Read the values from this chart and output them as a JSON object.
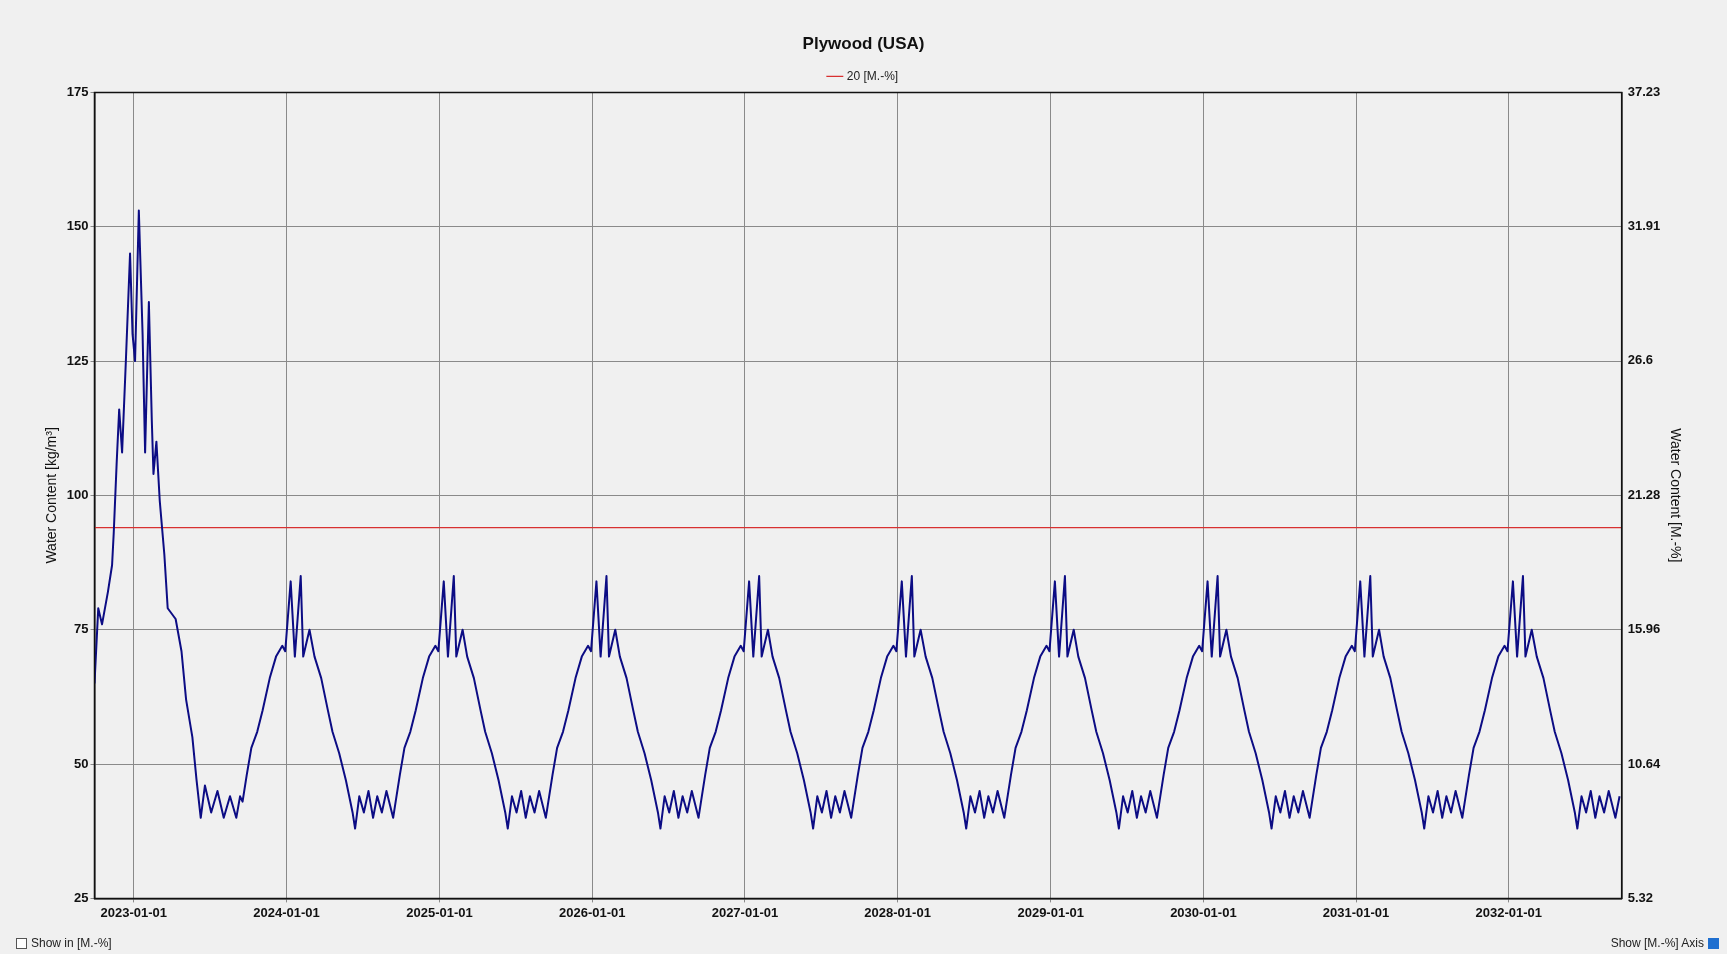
{
  "chart_data": {
    "type": "line",
    "title": "Plywood (USA)",
    "ylabel": "Water Content [kg/m³]",
    "y2label": "Water Content [M.-%]",
    "xlim": [
      "2022-09-29",
      "2032-09-27"
    ],
    "xticks": [
      "2023-01-01",
      "2024-01-01",
      "2025-01-01",
      "2026-01-01",
      "2027-01-01",
      "2028-01-01",
      "2029-01-01",
      "2030-01-01",
      "2031-01-01",
      "2032-01-01"
    ],
    "ylim": [
      25,
      175
    ],
    "yticks": [
      25,
      50,
      75,
      100,
      125,
      150,
      175
    ],
    "y2lim": [
      5.32,
      37.23
    ],
    "y2ticks": [
      5.32,
      10.64,
      15.96,
      21.28,
      26.6,
      31.91,
      37.23
    ],
    "grid": true,
    "legend": "top",
    "marker": "none",
    "line_style": "solid",
    "ref_lines": [
      {
        "axis": "y2",
        "value": 20,
        "label": "20 [M.-%]",
        "color": "#d83030"
      }
    ],
    "annotations": [
      "Show in [M.-%]",
      "Show [M.-%] Axis"
    ],
    "series": [
      {
        "color": "#0c0c84",
        "x": [
          "2022-09-29",
          "2022-10-08",
          "2022-10-17",
          "2022-10-31",
          "2022-11-10",
          "2022-11-14",
          "2022-11-21",
          "2022-11-27",
          "2022-12-04",
          "2022-12-13",
          "2022-12-23",
          "2022-12-29",
          "2023-01-04",
          "2023-01-13",
          "2023-01-22",
          "2023-01-28",
          "2023-02-06",
          "2023-02-13",
          "2023-02-17",
          "2023-02-24",
          "2023-03-04",
          "2023-03-15",
          "2023-03-23",
          "2023-04-11",
          "2023-04-25",
          "2023-05-06",
          "2023-05-21",
          "2023-05-31",
          "2023-06-10",
          "2023-06-20",
          "2023-07-05",
          "2023-07-20",
          "2023-08-04",
          "2023-08-19",
          "2023-09-03",
          "2023-09-12",
          "2023-09-18",
          "2023-09-28",
          "2023-10-09",
          "2023-10-23",
          "2023-11-05",
          "2023-11-22",
          "2023-12-07",
          "2023-12-22",
          "2023-12-29",
          "2024-01-11",
          "2024-01-21",
          "2024-02-04",
          "2024-02-10",
          "2024-02-25",
          "2024-03-08",
          "2024-03-24",
          "2024-04-09",
          "2024-04-20",
          "2024-05-06",
          "2024-05-22",
          "2024-06-07",
          "2024-06-13",
          "2024-06-23",
          "2024-07-04",
          "2024-07-15",
          "2024-07-26",
          "2024-08-05",
          "2024-08-16",
          "2024-08-27",
          "2024-09-12",
          "2024-09-18",
          "2024-09-28",
          "2024-10-09",
          "2024-10-23",
          "2024-11-05",
          "2024-11-22",
          "2024-12-07",
          "2024-12-22",
          "2024-12-29",
          "2025-01-11",
          "2025-01-21",
          "2025-02-04",
          "2025-02-10",
          "2025-02-25",
          "2025-03-08",
          "2025-03-24",
          "2025-04-09",
          "2025-04-20",
          "2025-05-06",
          "2025-05-22",
          "2025-06-07",
          "2025-06-13",
          "2025-06-23",
          "2025-07-04",
          "2025-07-15",
          "2025-07-26",
          "2025-08-05",
          "2025-08-16",
          "2025-08-27",
          "2025-09-12",
          "2025-09-18",
          "2025-09-28",
          "2025-10-09",
          "2025-10-23",
          "2025-11-05",
          "2025-11-22",
          "2025-12-07",
          "2025-12-22",
          "2025-12-29",
          "2026-01-11",
          "2026-01-21",
          "2026-02-04",
          "2026-02-10",
          "2026-02-25",
          "2026-03-08",
          "2026-03-24",
          "2026-04-09",
          "2026-04-20",
          "2026-05-06",
          "2026-05-22",
          "2026-06-07",
          "2026-06-13",
          "2026-06-23",
          "2026-07-04",
          "2026-07-15",
          "2026-07-26",
          "2026-08-05",
          "2026-08-16",
          "2026-08-27",
          "2026-09-12",
          "2026-09-18",
          "2026-09-28",
          "2026-10-09",
          "2026-10-23",
          "2026-11-05",
          "2026-11-22",
          "2026-12-07",
          "2026-12-22",
          "2026-12-29",
          "2027-01-11",
          "2027-01-21",
          "2027-02-04",
          "2027-02-10",
          "2027-02-25",
          "2027-03-08",
          "2027-03-24",
          "2027-04-09",
          "2027-04-20",
          "2027-05-06",
          "2027-05-22",
          "2027-06-07",
          "2027-06-13",
          "2027-06-23",
          "2027-07-04",
          "2027-07-15",
          "2027-07-26",
          "2027-08-05",
          "2027-08-16",
          "2027-08-27",
          "2027-09-12",
          "2027-09-18",
          "2027-09-28",
          "2027-10-09",
          "2027-10-23",
          "2027-11-05",
          "2027-11-22",
          "2027-12-07",
          "2027-12-22",
          "2027-12-29",
          "2028-01-11",
          "2028-01-21",
          "2028-02-04",
          "2028-02-10",
          "2028-02-25",
          "2028-03-08",
          "2028-03-24",
          "2028-04-09",
          "2028-04-20",
          "2028-05-06",
          "2028-05-22",
          "2028-06-07",
          "2028-06-13",
          "2028-06-23",
          "2028-07-04",
          "2028-07-15",
          "2028-07-26",
          "2028-08-05",
          "2028-08-16",
          "2028-08-27",
          "2028-09-12",
          "2028-09-18",
          "2028-09-28",
          "2028-10-09",
          "2028-10-23",
          "2028-11-05",
          "2028-11-22",
          "2028-12-07",
          "2028-12-22",
          "2028-12-29",
          "2029-01-11",
          "2029-01-21",
          "2029-02-04",
          "2029-02-10",
          "2029-02-25",
          "2029-03-08",
          "2029-03-24",
          "2029-04-09",
          "2029-04-20",
          "2029-05-06",
          "2029-05-22",
          "2029-06-07",
          "2029-06-13",
          "2029-06-23",
          "2029-07-04",
          "2029-07-15",
          "2029-07-26",
          "2029-08-05",
          "2029-08-16",
          "2029-08-27",
          "2029-09-12",
          "2029-09-18",
          "2029-09-28",
          "2029-10-09",
          "2029-10-23",
          "2029-11-05",
          "2029-11-22",
          "2029-12-07",
          "2029-12-22",
          "2029-12-29",
          "2030-01-11",
          "2030-01-21",
          "2030-02-04",
          "2030-02-10",
          "2030-02-25",
          "2030-03-08",
          "2030-03-24",
          "2030-04-09",
          "2030-04-20",
          "2030-05-06",
          "2030-05-22",
          "2030-06-07",
          "2030-06-13",
          "2030-06-23",
          "2030-07-04",
          "2030-07-15",
          "2030-07-26",
          "2030-08-05",
          "2030-08-16",
          "2030-08-27",
          "2030-09-12",
          "2030-09-18",
          "2030-09-28",
          "2030-10-09",
          "2030-10-23",
          "2030-11-05",
          "2030-11-22",
          "2030-12-07",
          "2030-12-22",
          "2030-12-29",
          "2031-01-11",
          "2031-01-21",
          "2031-02-04",
          "2031-02-10",
          "2031-02-25",
          "2031-03-08",
          "2031-03-24",
          "2031-04-09",
          "2031-04-20",
          "2031-05-06",
          "2031-05-22",
          "2031-06-07",
          "2031-06-13",
          "2031-06-23",
          "2031-07-04",
          "2031-07-15",
          "2031-07-26",
          "2031-08-05",
          "2031-08-16",
          "2031-08-27",
          "2031-09-12",
          "2031-09-18",
          "2031-09-28",
          "2031-10-09",
          "2031-10-23",
          "2031-11-05",
          "2031-11-22",
          "2031-12-07",
          "2031-12-22",
          "2031-12-29",
          "2032-01-11",
          "2032-01-21",
          "2032-02-04",
          "2032-02-10",
          "2032-02-25",
          "2032-03-08",
          "2032-03-24",
          "2032-04-09",
          "2032-04-20",
          "2032-05-06",
          "2032-05-22",
          "2032-06-07",
          "2032-06-13",
          "2032-06-23",
          "2032-07-04",
          "2032-07-15",
          "2032-07-26",
          "2032-08-05",
          "2032-08-16",
          "2032-08-27",
          "2032-09-12",
          "2032-09-22"
        ],
        "values": [
          65,
          79,
          76,
          82,
          87,
          93,
          106,
          116,
          108,
          125,
          145,
          130,
          125,
          153,
          130,
          108,
          136,
          114,
          104,
          110,
          99,
          89,
          79,
          77,
          71,
          62,
          55,
          47,
          40,
          46,
          41,
          45,
          40,
          44,
          40,
          44,
          43,
          48,
          53,
          56,
          60,
          66,
          70,
          72,
          71,
          84,
          70,
          85,
          70,
          75,
          70,
          66,
          60,
          56,
          52,
          47,
          41,
          38,
          44,
          41,
          45,
          40,
          44,
          41,
          45,
          40,
          43,
          48,
          53,
          56,
          60,
          66,
          70,
          72,
          71,
          84,
          70,
          85,
          70,
          75,
          70,
          66,
          60,
          56,
          52,
          47,
          41,
          38,
          44,
          41,
          45,
          40,
          44,
          41,
          45,
          40,
          43,
          48,
          53,
          56,
          60,
          66,
          70,
          72,
          71,
          84,
          70,
          85,
          70,
          75,
          70,
          66,
          60,
          56,
          52,
          47,
          41,
          38,
          44,
          41,
          45,
          40,
          44,
          41,
          45,
          40,
          43,
          48,
          53,
          56,
          60,
          66,
          70,
          72,
          71,
          84,
          70,
          85,
          70,
          75,
          70,
          66,
          60,
          56,
          52,
          47,
          41,
          38,
          44,
          41,
          45,
          40,
          44,
          41,
          45,
          40,
          43,
          48,
          53,
          56,
          60,
          66,
          70,
          72,
          71,
          84,
          70,
          85,
          70,
          75,
          70,
          66,
          60,
          56,
          52,
          47,
          41,
          38,
          44,
          41,
          45,
          40,
          44,
          41,
          45,
          40,
          43,
          48,
          53,
          56,
          60,
          66,
          70,
          72,
          71,
          84,
          70,
          85,
          70,
          75,
          70,
          66,
          60,
          56,
          52,
          47,
          41,
          38,
          44,
          41,
          45,
          40,
          44,
          41,
          45,
          40,
          43,
          48,
          53,
          56,
          60,
          66,
          70,
          72,
          71,
          84,
          70,
          85,
          70,
          75,
          70,
          66,
          60,
          56,
          52,
          47,
          41,
          38,
          44,
          41,
          45,
          40,
          44,
          41,
          45,
          40,
          43,
          48,
          53,
          56,
          60,
          66,
          70,
          72,
          71,
          84,
          70,
          85,
          70,
          75,
          70,
          66,
          60,
          56,
          52,
          47,
          41,
          38,
          44,
          41,
          45,
          40,
          44,
          41,
          45,
          40,
          43,
          48,
          53,
          56,
          60,
          66,
          70,
          72,
          71,
          84,
          70,
          85,
          70,
          75,
          70,
          66,
          60,
          56,
          52,
          47,
          41,
          38,
          44,
          41,
          45,
          40,
          44,
          41,
          45,
          40,
          44
        ]
      }
    ]
  }
}
